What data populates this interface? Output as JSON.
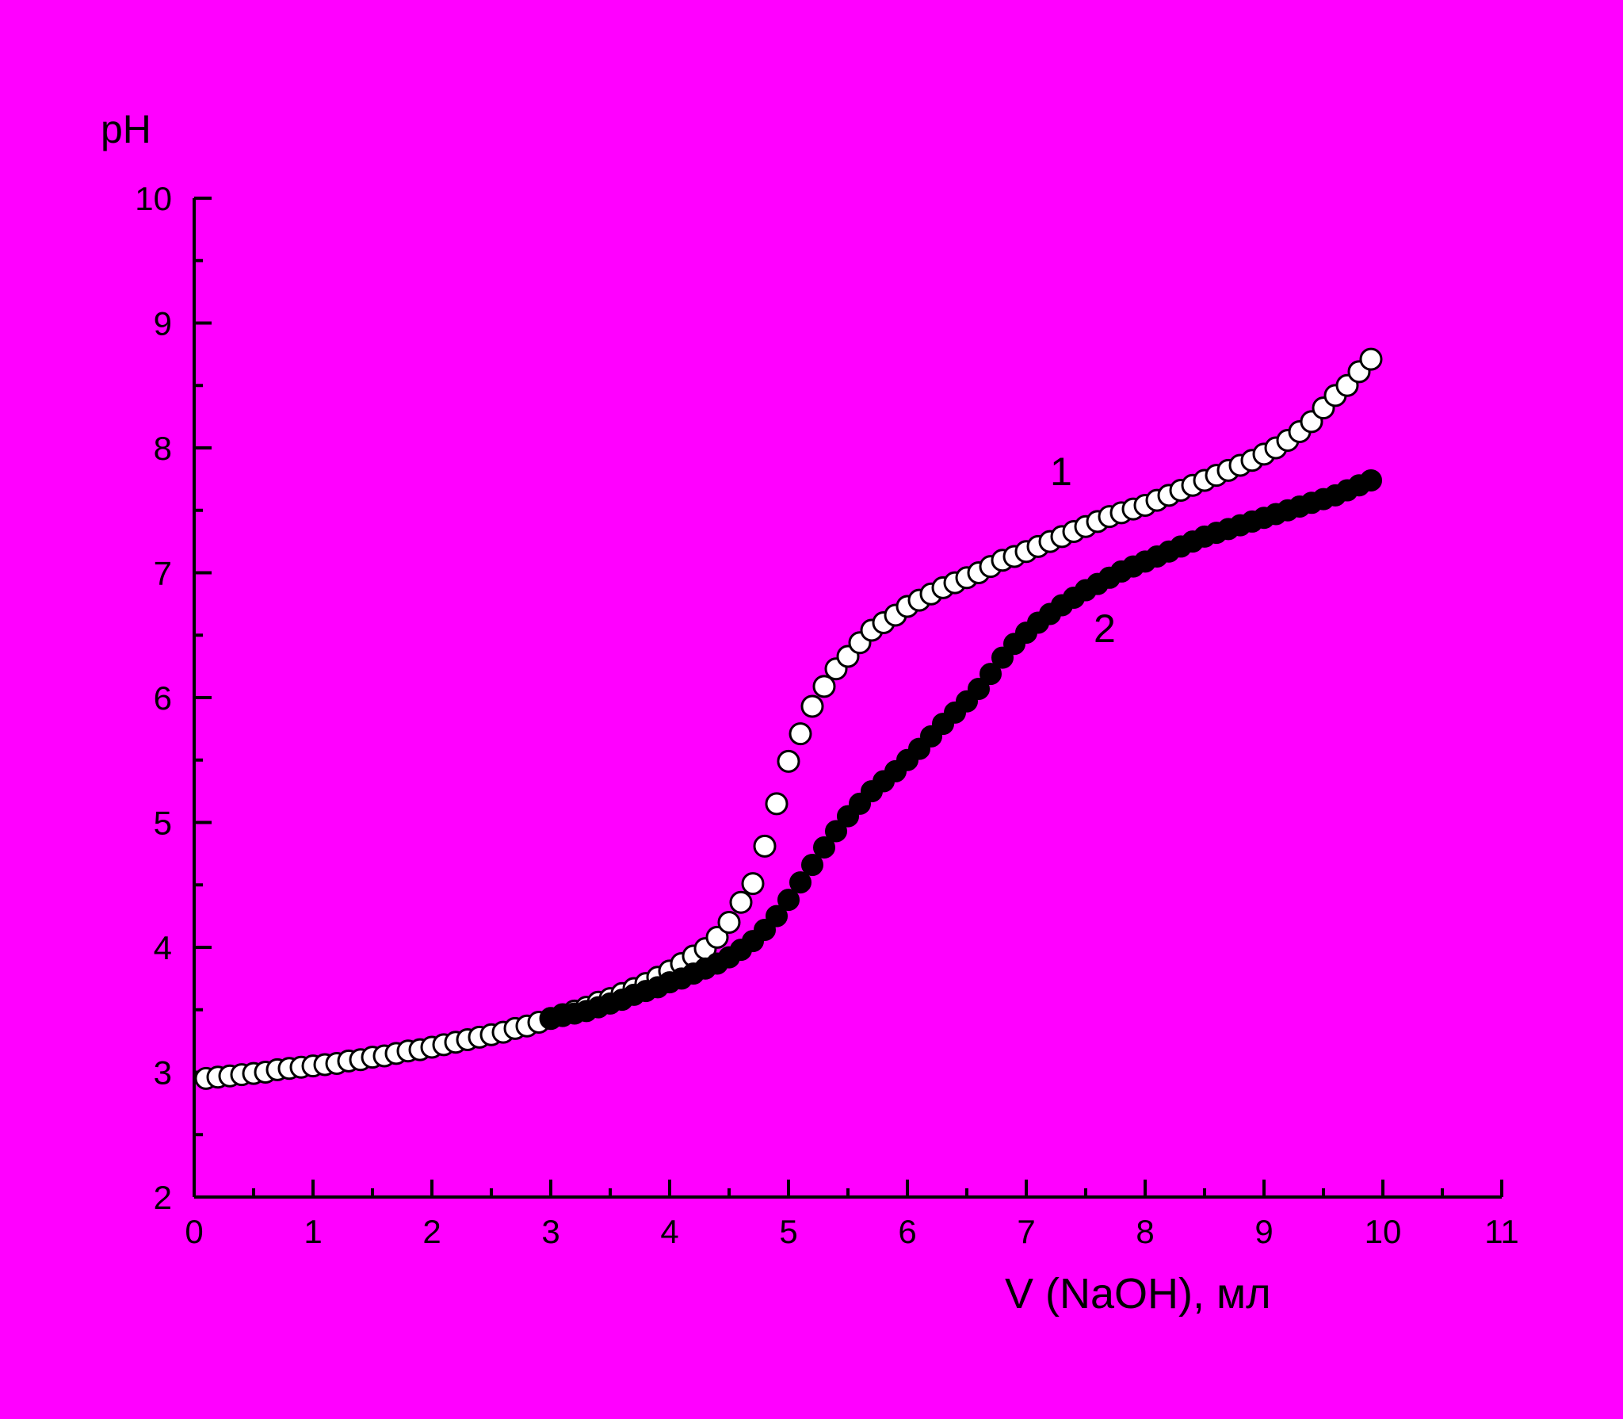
{
  "colors": {
    "background": "#ff00ff",
    "axis": "#000000",
    "series1_fill": "#ffffff",
    "series2_fill": "#000000",
    "marker_stroke": "#000000"
  },
  "chart_data": {
    "type": "scatter",
    "title": "",
    "xlabel": "V (NaOH), мл",
    "ylabel": "pH",
    "xlim": [
      0,
      11
    ],
    "ylim": [
      2,
      10
    ],
    "x_ticks": [
      "0",
      "1",
      "2",
      "3",
      "4",
      "5",
      "6",
      "7",
      "8",
      "9",
      "10",
      "11"
    ],
    "y_ticks": [
      "2",
      "3",
      "4",
      "5",
      "6",
      "7",
      "8",
      "9",
      "10"
    ],
    "grid": false,
    "series": [
      {
        "name": "1",
        "marker": "open-circle",
        "points": [
          [
            0.1,
            2.95
          ],
          [
            0.2,
            2.96
          ],
          [
            0.3,
            2.97
          ],
          [
            0.4,
            2.98
          ],
          [
            0.5,
            2.99
          ],
          [
            0.6,
            3.0
          ],
          [
            0.7,
            3.02
          ],
          [
            0.8,
            3.03
          ],
          [
            0.9,
            3.04
          ],
          [
            1.0,
            3.05
          ],
          [
            1.1,
            3.06
          ],
          [
            1.2,
            3.07
          ],
          [
            1.3,
            3.09
          ],
          [
            1.4,
            3.1
          ],
          [
            1.5,
            3.12
          ],
          [
            1.6,
            3.13
          ],
          [
            1.7,
            3.15
          ],
          [
            1.8,
            3.17
          ],
          [
            1.9,
            3.18
          ],
          [
            2.0,
            3.2
          ],
          [
            2.1,
            3.22
          ],
          [
            2.2,
            3.24
          ],
          [
            2.3,
            3.26
          ],
          [
            2.4,
            3.28
          ],
          [
            2.5,
            3.3
          ],
          [
            2.6,
            3.32
          ],
          [
            2.7,
            3.35
          ],
          [
            2.8,
            3.37
          ],
          [
            2.9,
            3.4
          ],
          [
            3.0,
            3.43
          ],
          [
            3.1,
            3.46
          ],
          [
            3.2,
            3.49
          ],
          [
            3.3,
            3.52
          ],
          [
            3.4,
            3.56
          ],
          [
            3.5,
            3.59
          ],
          [
            3.6,
            3.63
          ],
          [
            3.7,
            3.67
          ],
          [
            3.8,
            3.71
          ],
          [
            3.9,
            3.76
          ],
          [
            4.0,
            3.81
          ],
          [
            4.1,
            3.87
          ],
          [
            4.2,
            3.93
          ],
          [
            4.3,
            3.99
          ],
          [
            4.4,
            4.08
          ],
          [
            4.5,
            4.2
          ],
          [
            4.6,
            4.36
          ],
          [
            4.7,
            4.51
          ],
          [
            4.8,
            4.81
          ],
          [
            4.9,
            5.15
          ],
          [
            5.0,
            5.49
          ],
          [
            5.1,
            5.71
          ],
          [
            5.2,
            5.93
          ],
          [
            5.3,
            6.09
          ],
          [
            5.4,
            6.23
          ],
          [
            5.5,
            6.33
          ],
          [
            5.6,
            6.44
          ],
          [
            5.7,
            6.54
          ],
          [
            5.8,
            6.6
          ],
          [
            5.9,
            6.66
          ],
          [
            6.0,
            6.73
          ],
          [
            6.1,
            6.78
          ],
          [
            6.2,
            6.83
          ],
          [
            6.3,
            6.88
          ],
          [
            6.4,
            6.92
          ],
          [
            6.5,
            6.96
          ],
          [
            6.6,
            7.0
          ],
          [
            6.7,
            7.05
          ],
          [
            6.8,
            7.1
          ],
          [
            6.9,
            7.13
          ],
          [
            7.0,
            7.17
          ],
          [
            7.1,
            7.21
          ],
          [
            7.2,
            7.25
          ],
          [
            7.3,
            7.29
          ],
          [
            7.4,
            7.33
          ],
          [
            7.5,
            7.37
          ],
          [
            7.6,
            7.41
          ],
          [
            7.7,
            7.45
          ],
          [
            7.8,
            7.48
          ],
          [
            7.9,
            7.51
          ],
          [
            8.0,
            7.54
          ],
          [
            8.1,
            7.58
          ],
          [
            8.2,
            7.62
          ],
          [
            8.3,
            7.66
          ],
          [
            8.4,
            7.7
          ],
          [
            8.5,
            7.74
          ],
          [
            8.6,
            7.78
          ],
          [
            8.7,
            7.82
          ],
          [
            8.8,
            7.86
          ],
          [
            8.9,
            7.9
          ],
          [
            9.0,
            7.95
          ],
          [
            9.1,
            8.0
          ],
          [
            9.2,
            8.06
          ],
          [
            9.3,
            8.13
          ],
          [
            9.4,
            8.21
          ],
          [
            9.5,
            8.32
          ],
          [
            9.6,
            8.42
          ],
          [
            9.7,
            8.5
          ],
          [
            9.8,
            8.61
          ],
          [
            9.9,
            8.71
          ]
        ]
      },
      {
        "name": "2",
        "marker": "filled-circle",
        "points": [
          [
            3.0,
            3.43
          ],
          [
            3.1,
            3.45
          ],
          [
            3.2,
            3.47
          ],
          [
            3.3,
            3.49
          ],
          [
            3.4,
            3.52
          ],
          [
            3.5,
            3.55
          ],
          [
            3.6,
            3.58
          ],
          [
            3.7,
            3.62
          ],
          [
            3.8,
            3.65
          ],
          [
            3.9,
            3.68
          ],
          [
            4.0,
            3.72
          ],
          [
            4.1,
            3.75
          ],
          [
            4.2,
            3.79
          ],
          [
            4.3,
            3.83
          ],
          [
            4.4,
            3.87
          ],
          [
            4.5,
            3.92
          ],
          [
            4.6,
            3.98
          ],
          [
            4.7,
            4.05
          ],
          [
            4.8,
            4.14
          ],
          [
            4.9,
            4.25
          ],
          [
            5.0,
            4.38
          ],
          [
            5.1,
            4.52
          ],
          [
            5.2,
            4.66
          ],
          [
            5.3,
            4.8
          ],
          [
            5.4,
            4.93
          ],
          [
            5.5,
            5.05
          ],
          [
            5.6,
            5.15
          ],
          [
            5.7,
            5.25
          ],
          [
            5.8,
            5.33
          ],
          [
            5.9,
            5.41
          ],
          [
            6.0,
            5.5
          ],
          [
            6.1,
            5.59
          ],
          [
            6.2,
            5.69
          ],
          [
            6.3,
            5.79
          ],
          [
            6.4,
            5.88
          ],
          [
            6.5,
            5.97
          ],
          [
            6.6,
            6.07
          ],
          [
            6.7,
            6.19
          ],
          [
            6.8,
            6.32
          ],
          [
            6.9,
            6.43
          ],
          [
            7.0,
            6.52
          ],
          [
            7.1,
            6.6
          ],
          [
            7.2,
            6.67
          ],
          [
            7.3,
            6.74
          ],
          [
            7.4,
            6.8
          ],
          [
            7.5,
            6.86
          ],
          [
            7.6,
            6.91
          ],
          [
            7.7,
            6.96
          ],
          [
            7.8,
            7.01
          ],
          [
            7.9,
            7.05
          ],
          [
            8.0,
            7.09
          ],
          [
            8.1,
            7.13
          ],
          [
            8.2,
            7.17
          ],
          [
            8.3,
            7.21
          ],
          [
            8.4,
            7.25
          ],
          [
            8.5,
            7.29
          ],
          [
            8.6,
            7.32
          ],
          [
            8.7,
            7.35
          ],
          [
            8.8,
            7.38
          ],
          [
            8.9,
            7.41
          ],
          [
            9.0,
            7.44
          ],
          [
            9.1,
            7.47
          ],
          [
            9.2,
            7.5
          ],
          [
            9.3,
            7.53
          ],
          [
            9.4,
            7.56
          ],
          [
            9.5,
            7.59
          ],
          [
            9.6,
            7.62
          ],
          [
            9.7,
            7.66
          ],
          [
            9.8,
            7.7
          ],
          [
            9.9,
            7.74
          ]
        ]
      }
    ]
  }
}
